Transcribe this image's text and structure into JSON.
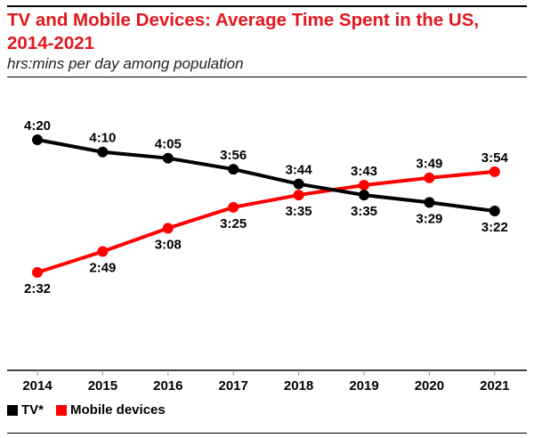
{
  "header": {
    "title": "TV and Mobile Devices: Average Time Spent in the US, 2014-2021",
    "subtitle": "hrs:mins per day among population"
  },
  "colors": {
    "title": "#e3171e",
    "tv": "#000000",
    "mobile": "#ff0000",
    "axis": "#000000",
    "tick": "#999999"
  },
  "chart_data": {
    "type": "line",
    "title": "TV and Mobile Devices: Average Time Spent in the US, 2014-2021",
    "subtitle": "hrs:mins per day among population",
    "xlabel": "",
    "ylabel": "",
    "x": [
      "2014",
      "2015",
      "2016",
      "2017",
      "2018",
      "2019",
      "2020",
      "2021"
    ],
    "ylim": [
      2.3,
      4.5
    ],
    "grid": false,
    "legend_position": "bottom-left",
    "series": [
      {
        "name": "TV*",
        "key": "tv",
        "values": [
          4.333,
          4.167,
          4.083,
          3.933,
          3.733,
          3.583,
          3.483,
          3.367
        ],
        "labels": [
          "4:20",
          "4:10",
          "4:05",
          "3:56",
          "3:44",
          "3:35",
          "3:29",
          "3:22"
        ],
        "label_side": [
          "above",
          "above",
          "above",
          "above",
          "above",
          "below",
          "below",
          "below"
        ]
      },
      {
        "name": "Mobile devices",
        "key": "mobile",
        "values": [
          2.533,
          2.817,
          3.133,
          3.417,
          3.583,
          3.717,
          3.817,
          3.9
        ],
        "labels": [
          "2:32",
          "2:49",
          "3:08",
          "3:25",
          "3:35",
          "3:43",
          "3:49",
          "3:54"
        ],
        "label_side": [
          "below",
          "below",
          "below",
          "below",
          "below",
          "above",
          "above",
          "above"
        ]
      }
    ]
  }
}
